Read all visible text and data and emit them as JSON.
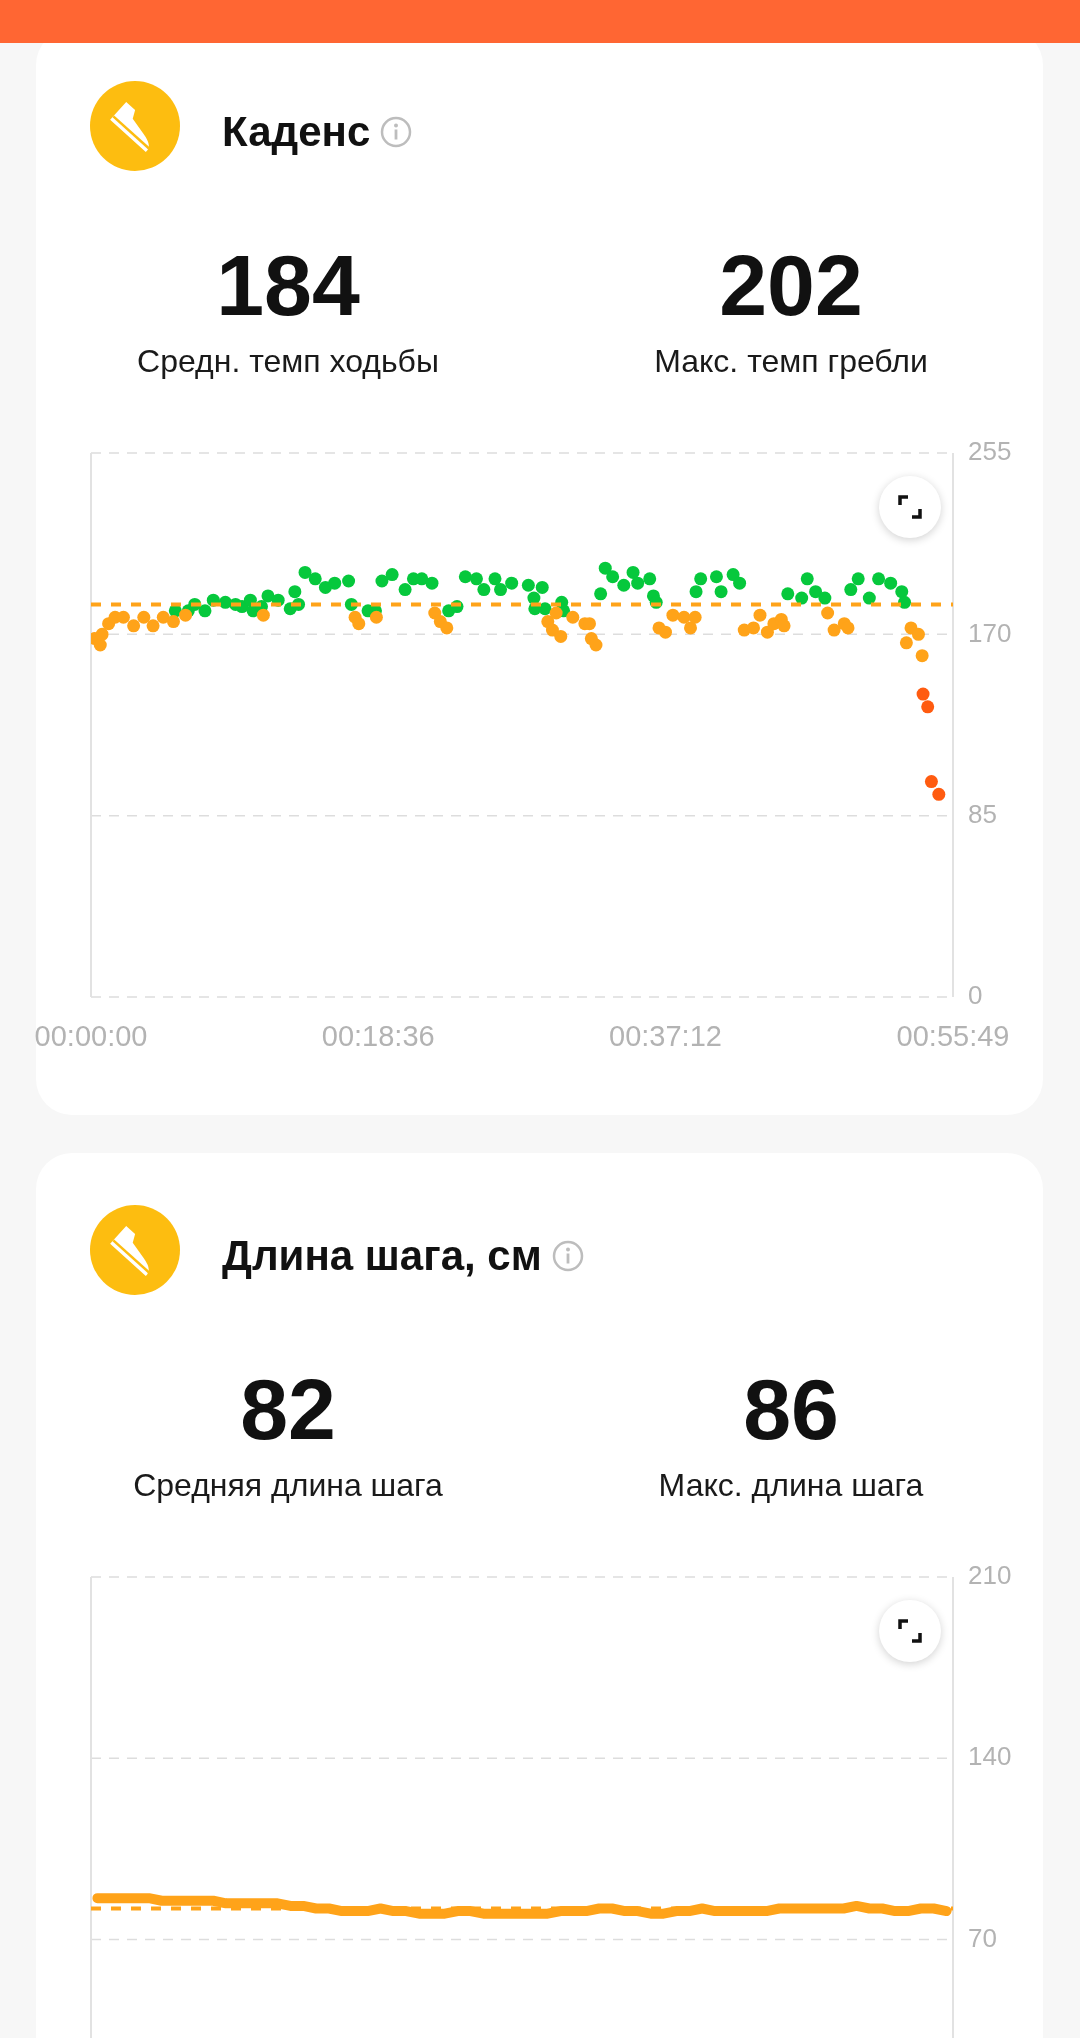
{
  "chart_data": [
    {
      "type": "scatter",
      "title": "Каденс",
      "annotations": [
        "184",
        "Средн. темп ходьбы",
        "202",
        "Макс. темп гребли"
      ],
      "series": [
        {
          "color": "#ffa319",
          "x": [
            0.004,
            0.01,
            0.012,
            0.019,
            0.026,
            0.035,
            0.046,
            0.057,
            0.067,
            0.078,
            0.089,
            0.102,
            0.186,
            0.285,
            0.289,
            0.308,
            0.371,
            0.377,
            0.384,
            0.493,
            0.498,
            0.502,
            0.507,
            0.52,
            0.533,
            0.538,
            0.54,
            0.545,
            0.613,
            0.62,
            0.628,
            0.64,
            0.647,
            0.652,
            0.705,
            0.715,
            0.722,
            0.73,
            0.737,
            0.745,
            0.748,
            0.795,
            0.802,
            0.813,
            0.817,
            0.88,
            0.885,
            0.893,
            0.897
          ],
          "values": [
            168,
            165,
            170,
            175,
            178,
            178,
            174,
            178,
            174,
            178,
            176,
            179,
            179,
            178,
            175,
            178,
            180,
            176,
            173,
            176,
            172,
            180,
            169,
            178,
            175,
            175,
            168,
            165,
            173,
            171,
            179,
            178,
            173,
            178,
            172,
            173,
            179,
            171,
            175,
            177,
            174,
            180,
            172,
            175,
            173,
            166,
            173,
            170,
            160
          ]
        },
        {
          "color": "#06c83c",
          "x": [
            0.091,
            0.105,
            0.112,
            0.123,
            0.132,
            0.145,
            0.156,
            0.163,
            0.172,
            0.175,
            0.184,
            0.191,
            0.202,
            0.215,
            0.22,
            0.224,
            0.231,
            0.242,
            0.253,
            0.263,
            0.278,
            0.281,
            0.299,
            0.307,
            0.314,
            0.325,
            0.339,
            0.348,
            0.357,
            0.368,
            0.386,
            0.395,
            0.404,
            0.416,
            0.424,
            0.436,
            0.442,
            0.454,
            0.472,
            0.478,
            0.479,
            0.487,
            0.49,
            0.508,
            0.51,
            0.55,
            0.555,
            0.563,
            0.575,
            0.585,
            0.59,
            0.603,
            0.607,
            0.61,
            0.653,
            0.658,
            0.675,
            0.68,
            0.693,
            0.7,
            0.752,
            0.767,
            0.773,
            0.782,
            0.792,
            0.82,
            0.828,
            0.84,
            0.85,
            0.863,
            0.875,
            0.878
          ],
          "values": [
            181,
            181,
            184,
            181,
            186,
            185,
            184,
            183,
            186,
            181,
            183,
            188,
            186,
            182,
            190,
            184,
            199,
            196,
            192,
            194,
            195,
            184,
            181,
            181,
            195,
            198,
            191,
            196,
            196,
            194,
            181,
            183,
            197,
            196,
            191,
            196,
            191,
            194,
            193,
            187,
            182,
            192,
            182,
            185,
            181,
            189,
            201,
            197,
            193,
            199,
            194,
            196,
            188,
            185,
            190,
            196,
            197,
            190,
            198,
            194,
            189,
            187,
            196,
            190,
            187,
            191,
            196,
            187,
            196,
            194,
            190,
            185
          ]
        },
        {
          "color": "#ff5b10",
          "x": [
            0.898,
            0.903,
            0.907,
            0.915
          ],
          "values": [
            142,
            136,
            101,
            95
          ]
        }
      ],
      "xlim": [
        0,
        0.9303
      ],
      "xticks": [
        {
          "value": 0,
          "label": "00:00:00"
        },
        {
          "value": 0.31,
          "label": "00:18:36"
        },
        {
          "value": 0.62,
          "label": "00:37:12"
        },
        {
          "value": 0.9303,
          "label": "00:55:49"
        }
      ],
      "ylim": [
        0,
        255
      ],
      "yticks": [
        0,
        85,
        170,
        255
      ],
      "grid": "y",
      "marker": "circle",
      "ref_lines": [
        {
          "axis": "y",
          "value": 184,
          "color": "#ffa319",
          "line_style": "dashed"
        }
      ]
    },
    {
      "type": "line",
      "title": "Длина шага, см",
      "annotations": [
        "82",
        "Средняя длина шага",
        "86",
        "Макс. длина шага"
      ],
      "categories": [
        null,
        null,
        null,
        null,
        null,
        null,
        null,
        null,
        null,
        null,
        null,
        null,
        null,
        null,
        null,
        null,
        null,
        null,
        null,
        null,
        null,
        null,
        null,
        null,
        null,
        null,
        null,
        null,
        null,
        null,
        null,
        null,
        null,
        null,
        null,
        null,
        null,
        null,
        null,
        null,
        null,
        null,
        null,
        null,
        null,
        null,
        null,
        null,
        null,
        null,
        null,
        null,
        null,
        null,
        null,
        null,
        null,
        null,
        null,
        null,
        null,
        null,
        null,
        null,
        null,
        null,
        null
      ],
      "series": [
        {
          "color": "#ffa319",
          "values": [
            86,
            86,
            86,
            86,
            86,
            85,
            85,
            85,
            85,
            85,
            84,
            84,
            84,
            84,
            84,
            83,
            83,
            82,
            82,
            81,
            81,
            81,
            82,
            81,
            81,
            80,
            80,
            80,
            81,
            81,
            80,
            80,
            80,
            80,
            80,
            80,
            81,
            81,
            81,
            82,
            82,
            81,
            81,
            80,
            80,
            81,
            81,
            82,
            81,
            81,
            81,
            81,
            81,
            82,
            82,
            82,
            82,
            82,
            82,
            83,
            82,
            82,
            81,
            81,
            82,
            82,
            81
          ]
        }
      ],
      "ylim": [
        32,
        210
      ],
      "yticks": [
        70,
        140,
        210
      ],
      "grid": "y",
      "tick_labels": "y",
      "line_style": "solid",
      "ref_lines": [
        {
          "axis": "y",
          "value": 82,
          "color": "#ffa319",
          "line_style": "dashed"
        }
      ]
    }
  ]
}
